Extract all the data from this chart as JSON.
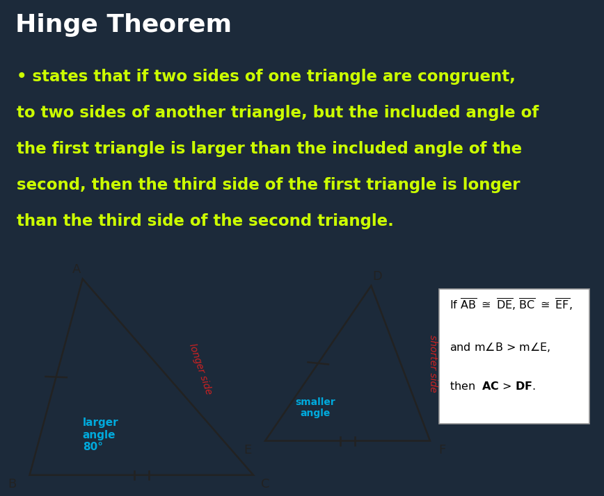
{
  "bg_color": "#1c2a3a",
  "title": "Hinge Theorem",
  "title_color": "#ffffff",
  "title_fontsize": 26,
  "bullet_text_color": "#ccff00",
  "bullet_lines": [
    "• states that if two sides of one triangle are congruent,",
    "to two sides of another triangle, but the included angle of",
    "the first triangle is larger than the included angle of the",
    "second, then the third side of the first triangle is longer",
    "than the third side of the second triangle."
  ],
  "bullet_fontsize": 16.5,
  "diagram_bg": "#b8d4e8",
  "triangle_color": "#222222",
  "longer_side_color": "#cc2222",
  "shorter_side_color": "#cc2222",
  "label_color_cyan": "#00aadd",
  "larger_angle_label": "larger\nangle\n80°",
  "smaller_angle_label": "smaller\nangle",
  "formula_line1": "If $\\overline{\\mathrm{AB}}$ $\\cong$ $\\overline{\\mathrm{DE}}$, $\\overline{\\mathrm{BC}}$ $\\cong$ $\\overline{\\mathrm{EF}}$,",
  "formula_line2": "and m$\\angle$B > m$\\angle$E,",
  "formula_line3": "then  $\\mathbf{AC}$ > $\\mathbf{DF}$."
}
